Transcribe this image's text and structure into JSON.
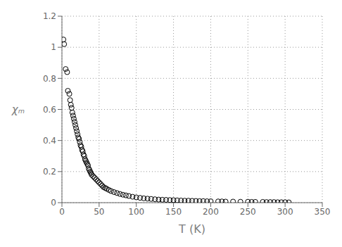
{
  "chart_data": {
    "type": "scatter",
    "xlabel": "T (K)",
    "ylabel": "χₘ",
    "x": [
      2,
      3,
      5,
      7,
      8,
      10,
      11,
      12,
      13,
      14,
      15,
      16,
      17,
      18,
      19,
      20,
      21,
      22,
      23,
      24,
      25,
      26,
      27,
      28,
      29,
      30,
      31,
      32,
      33,
      34,
      35,
      36,
      37,
      38,
      39,
      40,
      42,
      44,
      46,
      48,
      50,
      52,
      54,
      56,
      58,
      60,
      63,
      66,
      70,
      74,
      78,
      82,
      86,
      90,
      95,
      100,
      105,
      110,
      115,
      120,
      125,
      130,
      135,
      140,
      145,
      150,
      155,
      160,
      165,
      170,
      175,
      180,
      185,
      190,
      195,
      200,
      210,
      215,
      220,
      230,
      240,
      250,
      255,
      260,
      270,
      275,
      280,
      285,
      290,
      295,
      300,
      305
    ],
    "values": [
      1.05,
      1.02,
      0.86,
      0.84,
      0.72,
      0.7,
      0.66,
      0.63,
      0.61,
      0.58,
      0.56,
      0.54,
      0.52,
      0.5,
      0.48,
      0.46,
      0.44,
      0.42,
      0.41,
      0.39,
      0.37,
      0.36,
      0.34,
      0.33,
      0.31,
      0.3,
      0.28,
      0.27,
      0.26,
      0.25,
      0.24,
      0.22,
      0.21,
      0.2,
      0.19,
      0.18,
      0.17,
      0.16,
      0.15,
      0.14,
      0.13,
      0.12,
      0.11,
      0.1,
      0.095,
      0.09,
      0.082,
      0.075,
      0.068,
      0.062,
      0.056,
      0.051,
      0.047,
      0.043,
      0.038,
      0.034,
      0.031,
      0.028,
      0.026,
      0.024,
      0.022,
      0.02,
      0.019,
      0.018,
      0.017,
      0.016,
      0.015,
      0.014,
      0.013,
      0.013,
      0.012,
      0.011,
      0.01,
      0.01,
      0.009,
      0.009,
      0.008,
      0.008,
      0.007,
      0.007,
      0.006,
      0.006,
      0.005,
      0.005,
      0.005,
      0.004,
      0.004,
      0.004,
      0.003,
      0.003,
      0.003,
      0.002
    ],
    "xlim": [
      0,
      350
    ],
    "ylim": [
      0,
      1.2
    ],
    "xticks": [
      0,
      50,
      100,
      150,
      200,
      250,
      300,
      350
    ],
    "yticks": [
      0,
      0.2,
      0.4,
      0.6,
      0.8,
      1,
      1.2
    ],
    "grid": true,
    "color": "#000000",
    "marker": "o"
  }
}
